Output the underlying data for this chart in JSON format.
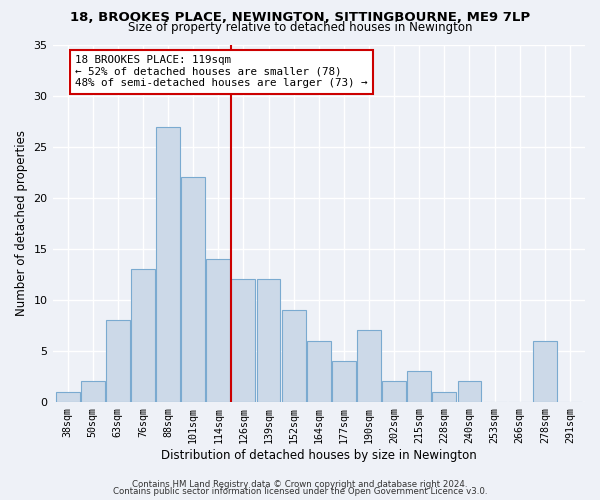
{
  "title": "18, BROOKES PLACE, NEWINGTON, SITTINGBOURNE, ME9 7LP",
  "subtitle": "Size of property relative to detached houses in Newington",
  "xlabel": "Distribution of detached houses by size in Newington",
  "ylabel": "Number of detached properties",
  "bar_color": "#ccd9e8",
  "bar_edge_color": "#7aaad0",
  "background_color": "#eef1f7",
  "grid_color": "#ffffff",
  "categories": [
    "38sqm",
    "50sqm",
    "63sqm",
    "76sqm",
    "88sqm",
    "101sqm",
    "114sqm",
    "126sqm",
    "139sqm",
    "152sqm",
    "164sqm",
    "177sqm",
    "190sqm",
    "202sqm",
    "215sqm",
    "228sqm",
    "240sqm",
    "253sqm",
    "266sqm",
    "278sqm",
    "291sqm"
  ],
  "values": [
    1,
    2,
    8,
    13,
    27,
    22,
    14,
    12,
    12,
    9,
    6,
    4,
    7,
    2,
    3,
    1,
    2,
    0,
    0,
    6,
    0
  ],
  "ylim": [
    0,
    35
  ],
  "yticks": [
    0,
    5,
    10,
    15,
    20,
    25,
    30,
    35
  ],
  "vline_x_index": 6,
  "vline_color": "#cc0000",
  "annotation_title": "18 BROOKES PLACE: 119sqm",
  "annotation_line1": "← 52% of detached houses are smaller (78)",
  "annotation_line2": "48% of semi-detached houses are larger (73) →",
  "annotation_box_facecolor": "#ffffff",
  "annotation_box_edgecolor": "#cc0000",
  "footer1": "Contains HM Land Registry data © Crown copyright and database right 2024.",
  "footer2": "Contains public sector information licensed under the Open Government Licence v3.0."
}
